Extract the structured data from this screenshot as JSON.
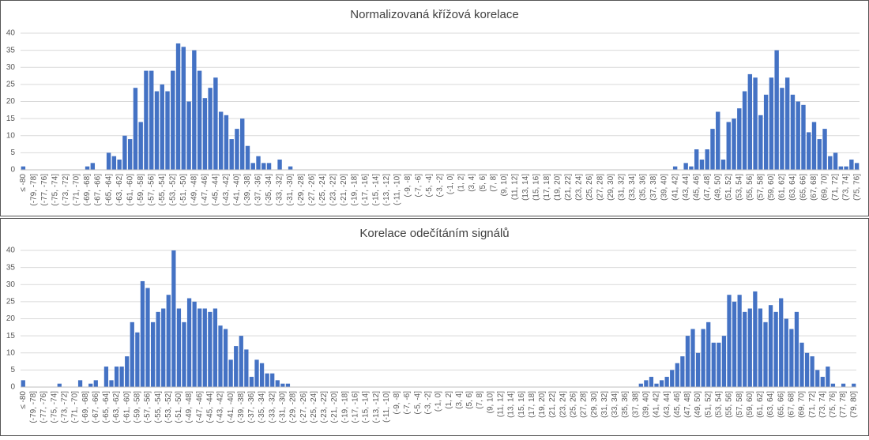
{
  "chart_data": [
    {
      "type": "bar",
      "title": "Normalizovaná křížová korelace",
      "color": "#4472c4",
      "grid": true,
      "ylim": [
        0,
        40
      ],
      "yticks": [
        0,
        5,
        10,
        15,
        20,
        25,
        30,
        35,
        40
      ],
      "categories": [
        "≤ -80",
        null,
        "(-79, -78]",
        null,
        "(-77, -76]",
        null,
        "(-75, -74]",
        null,
        "(-73, -72]",
        null,
        "(-71, -70]",
        null,
        "(-69, -68]",
        null,
        "(-67, -66]",
        null,
        "(-65, -64]",
        null,
        "(-63, -62]",
        null,
        "(-61, -60]",
        null,
        "(-59, -58]",
        null,
        "(-57, -56]",
        null,
        "(-55, -54]",
        null,
        "(-53, -52]",
        null,
        "(-51, -50]",
        null,
        "(-49, -48]",
        null,
        "(-47, -46]",
        null,
        "(-45, -44]",
        null,
        "(-43, -42]",
        null,
        "(-41, -40]",
        null,
        "(-39, -38]",
        null,
        "(-37, -36]",
        null,
        "(-35, -34]",
        null,
        "(-33, -32]",
        null,
        "(-31, -30]",
        null,
        "(-29, -28]",
        null,
        "(-27, -26]",
        null,
        "(-25, -24]",
        null,
        "(-23, -22]",
        null,
        "(-21, -20]",
        null,
        "(-19, -18]",
        null,
        "(-17, -16]",
        null,
        "(-15, -14]",
        null,
        "(-13, -12]",
        null,
        "(-11, -10]",
        null,
        "(-9, -8]",
        null,
        "(-7, -6]",
        null,
        "(-5, -4]",
        null,
        "(-3, -2]",
        null,
        "(-1, 0]",
        null,
        "(1, 2]",
        null,
        "(3, 4]",
        null,
        "(5, 6]",
        null,
        "(7, 8]",
        null,
        "(9, 10]",
        null,
        "(11, 12]",
        null,
        "(13, 14]",
        null,
        "(15, 16]",
        null,
        "(17, 18]",
        null,
        "(19, 20]",
        null,
        "(21, 22]",
        null,
        "(23, 24]",
        null,
        "(25, 26]",
        null,
        "(27, 28]",
        null,
        "(29, 30]",
        null,
        "(31, 32]",
        null,
        "(33, 34]",
        null,
        "(35, 36]",
        null,
        "(37, 38]",
        null,
        "(39, 40]",
        null,
        "(41, 42]",
        null,
        "(43, 44]",
        null,
        "(45, 46]",
        null,
        "(47, 48]",
        null,
        "(49, 50]",
        null,
        "(51, 52]",
        null,
        "(53, 54]",
        null,
        "(55, 56]",
        null,
        "(57, 58]",
        null,
        "(59, 60]",
        null,
        "(61, 62]",
        null,
        "(63, 64]",
        null,
        "(65, 66]",
        null,
        "(67, 68]",
        null,
        "(69, 70]",
        null,
        "(71, 72]",
        null,
        "(73, 74]",
        null,
        "(75, 76]"
      ],
      "values": [
        1,
        0,
        0,
        0,
        0,
        0,
        0,
        0,
        0,
        0,
        0,
        0,
        1,
        2,
        0,
        0,
        5,
        4,
        3,
        10,
        9,
        24,
        14,
        29,
        29,
        23,
        25,
        23,
        29,
        37,
        36,
        20,
        35,
        29,
        21,
        24,
        27,
        17,
        16,
        9,
        12,
        15,
        7,
        2,
        4,
        2,
        2,
        0,
        3,
        0,
        1,
        0,
        0,
        0,
        0,
        0,
        0,
        0,
        0,
        0,
        0,
        0,
        0,
        0,
        0,
        0,
        0,
        0,
        0,
        0,
        0,
        0,
        0,
        0,
        0,
        0,
        0,
        0,
        0,
        0,
        0,
        0,
        0,
        0,
        0,
        0,
        0,
        0,
        0,
        0,
        0,
        0,
        0,
        0,
        0,
        0,
        0,
        0,
        0,
        0,
        0,
        0,
        0,
        0,
        0,
        0,
        0,
        0,
        0,
        0,
        0,
        0,
        0,
        0,
        0,
        0,
        0,
        0,
        0,
        0,
        0,
        0,
        1,
        0,
        2,
        1,
        6,
        3,
        6,
        12,
        17,
        3,
        14,
        15,
        18,
        23,
        28,
        27,
        16,
        22,
        27,
        35,
        24,
        27,
        22,
        20,
        19,
        11,
        14,
        9,
        12,
        4,
        5,
        1,
        1,
        3,
        2
      ]
    },
    {
      "type": "bar",
      "title": "Korelace odečítáním signálů",
      "color": "#4472c4",
      "grid": true,
      "ylim": [
        0,
        40
      ],
      "yticks": [
        0,
        5,
        10,
        15,
        20,
        25,
        30,
        35,
        40
      ],
      "categories": [
        "≤ -80",
        null,
        "(-79, -78]",
        null,
        "(-77, -76]",
        null,
        "(-75, -74]",
        null,
        "(-73, -72]",
        null,
        "(-71, -70]",
        null,
        "(-69, -68]",
        null,
        "(-67, -66]",
        null,
        "(-65, -64]",
        null,
        "(-63, -62]",
        null,
        "(-61, -60]",
        null,
        "(-59, -58]",
        null,
        "(-57, -56]",
        null,
        "(-55, -54]",
        null,
        "(-53, -52]",
        null,
        "(-51, -50]",
        null,
        "(-49, -48]",
        null,
        "(-47, -46]",
        null,
        "(-45, -44]",
        null,
        "(-43, -42]",
        null,
        "(-41, -40]",
        null,
        "(-39, -38]",
        null,
        "(-37, -36]",
        null,
        "(-35, -34]",
        null,
        "(-33, -32]",
        null,
        "(-31, -30]",
        null,
        "(-29, -28]",
        null,
        "(-27, -26]",
        null,
        "(-25, -24]",
        null,
        "(-23, -22]",
        null,
        "(-21, -20]",
        null,
        "(-19, -18]",
        null,
        "(-17, -16]",
        null,
        "(-15, -14]",
        null,
        "(-13, -12]",
        null,
        "(-11, -10]",
        null,
        "(-9, -8]",
        null,
        "(-7, -6]",
        null,
        "(-5, -4]",
        null,
        "(-3, -2]",
        null,
        "(-1, 0]",
        null,
        "(1, 2]",
        null,
        "(3, 4]",
        null,
        "(5, 6]",
        null,
        "(7, 8]",
        null,
        "(9, 10]",
        null,
        "(11, 12]",
        null,
        "(13, 14]",
        null,
        "(15, 16]",
        null,
        "(17, 18]",
        null,
        "(19, 20]",
        null,
        "(21, 22]",
        null,
        "(23, 24]",
        null,
        "(25, 26]",
        null,
        "(27, 28]",
        null,
        "(29, 30]",
        null,
        "(31, 32]",
        null,
        "(33, 34]",
        null,
        "(35, 36]",
        null,
        "(37, 38]",
        null,
        "(39, 40]",
        null,
        "(41, 42]",
        null,
        "(43, 44]",
        null,
        "(45, 46]",
        null,
        "(47, 48]",
        null,
        "(49, 50]",
        null,
        "(51, 52]",
        null,
        "(53, 54]",
        null,
        "(55, 56]",
        null,
        "(57, 58]",
        null,
        "(59, 60]",
        null,
        "(61, 62]",
        null,
        "(63, 64]",
        null,
        "(65, 66]",
        null,
        "(67, 68]",
        null,
        "(69, 70]",
        null,
        "(71, 72]",
        null,
        "(73, 74]",
        null,
        "(75, 76]",
        null,
        "(77, 78]",
        null,
        "(79, 80]"
      ],
      "values": [
        2,
        0,
        0,
        0,
        0,
        0,
        0,
        1,
        0,
        0,
        0,
        2,
        0,
        1,
        2,
        0,
        6,
        2,
        6,
        6,
        9,
        19,
        16,
        31,
        29,
        19,
        22,
        23,
        27,
        40,
        23,
        19,
        26,
        25,
        23,
        23,
        22,
        23,
        18,
        17,
        8,
        12,
        15,
        11,
        3,
        8,
        7,
        4,
        4,
        2,
        1,
        1,
        0,
        0,
        0,
        0,
        0,
        0,
        0,
        0,
        0,
        0,
        0,
        0,
        0,
        0,
        0,
        0,
        0,
        0,
        0,
        0,
        0,
        0,
        0,
        0,
        0,
        0,
        0,
        0,
        0,
        0,
        0,
        0,
        0,
        0,
        0,
        0,
        0,
        0,
        0,
        0,
        0,
        0,
        0,
        0,
        0,
        0,
        0,
        0,
        0,
        0,
        0,
        0,
        0,
        0,
        0,
        0,
        0,
        0,
        0,
        0,
        0,
        0,
        0,
        0,
        0,
        0,
        0,
        1,
        2,
        3,
        1,
        2,
        3,
        5,
        7,
        9,
        15,
        17,
        10,
        17,
        19,
        13,
        13,
        15,
        27,
        25,
        27,
        22,
        23,
        28,
        23,
        19,
        24,
        22,
        26,
        20,
        17,
        22,
        13,
        10,
        9,
        5,
        3,
        6,
        1,
        0,
        1,
        0,
        1
      ]
    }
  ]
}
